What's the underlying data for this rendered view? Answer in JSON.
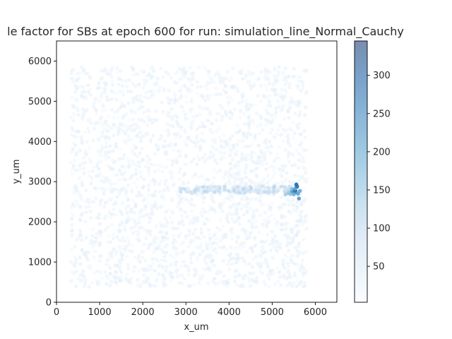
{
  "chart_data": {
    "type": "scatter",
    "title": "le factor for SBs at epoch 600 for run: simulation_line_Normal_Cauchy",
    "xlabel": "x_um",
    "ylabel": "y_um",
    "xlim": [
      0,
      6500
    ],
    "ylim": [
      0,
      6500
    ],
    "x_ticks": [
      "0",
      "1000",
      "2000",
      "3000",
      "4000",
      "5000",
      "6000"
    ],
    "y_ticks": [
      "0",
      "1000",
      "2000",
      "3000",
      "4000",
      "5000",
      "6000"
    ],
    "grid": false,
    "colormap": "Blues",
    "colorbar": {
      "range": [
        3,
        345
      ],
      "ticks": [
        "50",
        "100",
        "150",
        "200",
        "250",
        "300"
      ]
    },
    "background_points": {
      "x_range": [
        330,
        5800
      ],
      "y_range": [
        380,
        5850
      ],
      "typical_value": 25
    },
    "line_points": {
      "y_center": 2800,
      "x_range": [
        2850,
        5500
      ],
      "value_range": [
        30,
        120
      ]
    },
    "series": [
      {
        "x": [
          5480,
          5510,
          5540,
          5520,
          5560,
          5580,
          5600,
          5450,
          5420,
          5560,
          5640,
          5620,
          5380,
          5310,
          5460,
          5500,
          5530
        ],
        "y": [
          2760,
          2790,
          2770,
          2720,
          2930,
          2880,
          2700,
          2740,
          2690,
          2860,
          2770,
          2580,
          2720,
          2680,
          2820,
          2680,
          2820
        ],
        "values": [
          260,
          290,
          300,
          230,
          300,
          270,
          210,
          190,
          150,
          250,
          200,
          220,
          140,
          130,
          160,
          170,
          180
        ]
      }
    ]
  }
}
